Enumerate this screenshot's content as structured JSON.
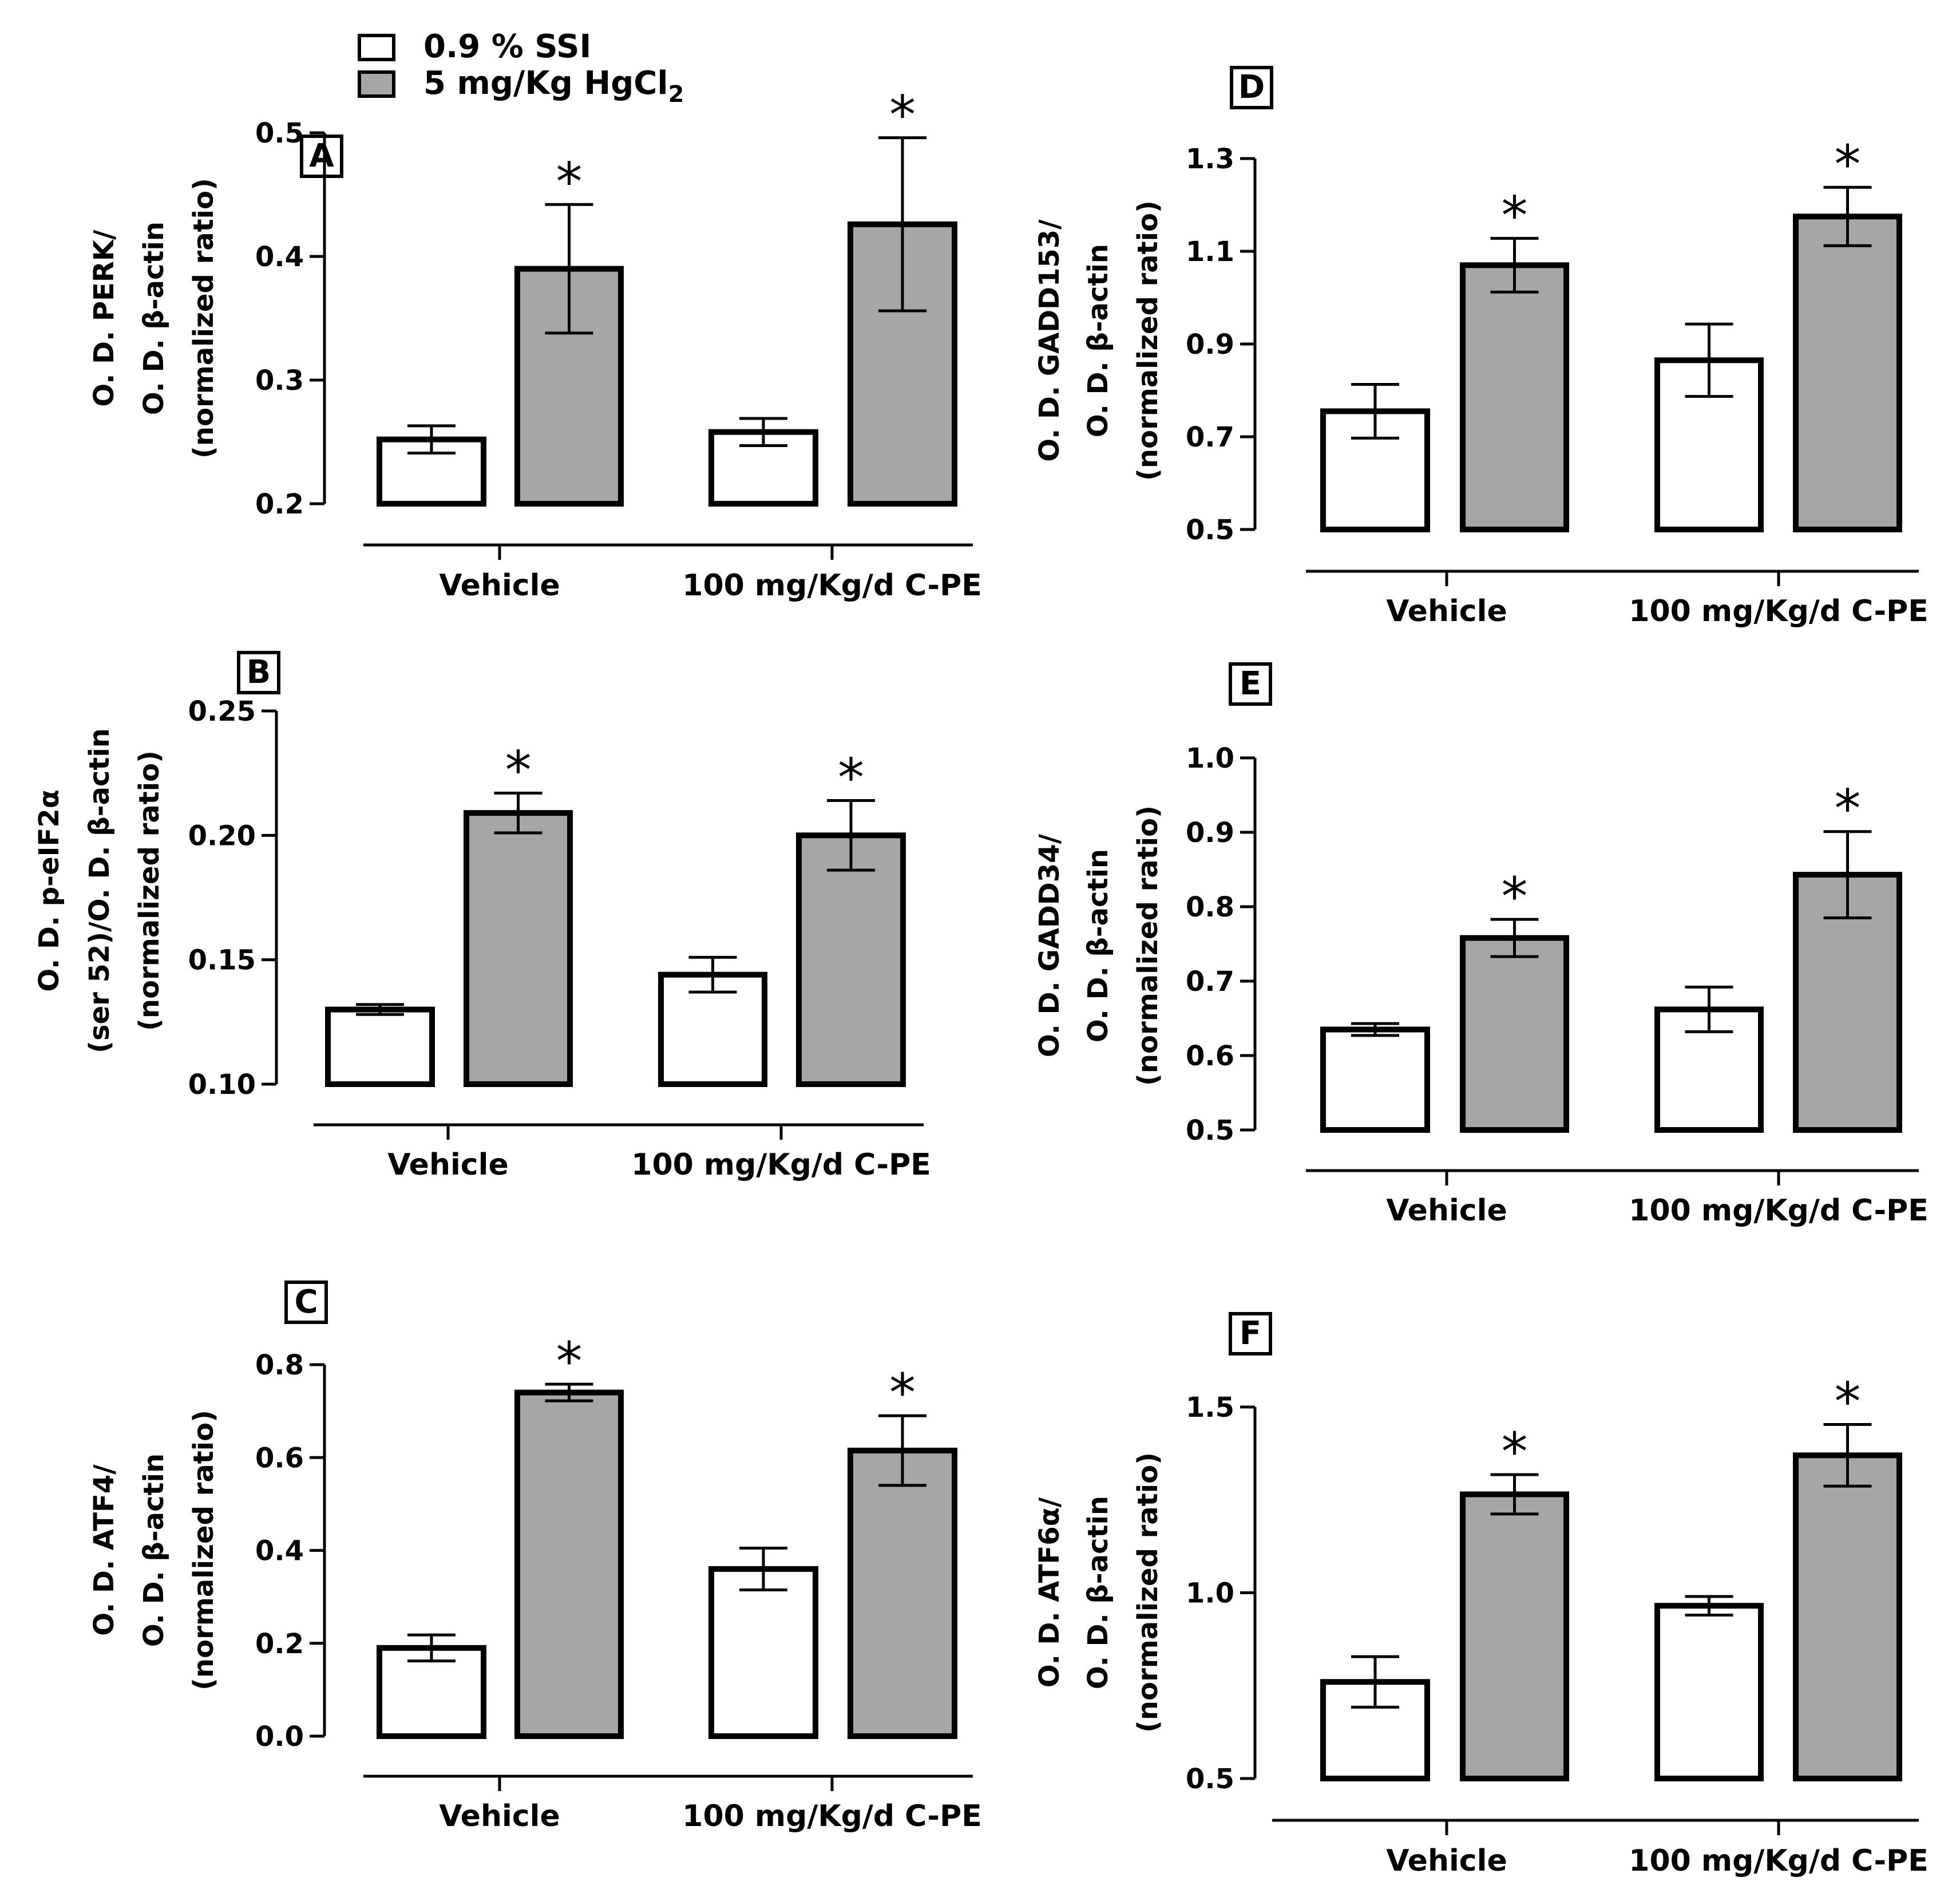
{
  "legend": {
    "items": [
      {
        "label": "0.9 % SSI",
        "color": "#ffffff"
      },
      {
        "label": "5 mg/Kg HgCl",
        "subscript": "2",
        "color": "#a6a6a6"
      }
    ]
  },
  "chart_data": [
    {
      "type": "bar",
      "panel": "A",
      "ylabel": [
        "O. D. PERK/",
        "O. D. β-actin",
        "(normalized ratio)"
      ],
      "categories": [
        "Vehicle",
        "100 mg/Kg/d C-PE"
      ],
      "ylim": [
        0.2,
        0.5
      ],
      "yticks": [
        0.2,
        0.3,
        0.4,
        0.5
      ],
      "tick_labels": [
        "0.2",
        "0.3",
        "0.4",
        "0.5"
      ],
      "series": [
        {
          "name": "0.9 % SSI",
          "values": [
            0.252,
            0.258
          ],
          "errors": [
            0.011,
            0.011
          ]
        },
        {
          "name": "5 mg/Kg HgCl2",
          "values": [
            0.39,
            0.426
          ],
          "errors": [
            0.052,
            0.07
          ]
        }
      ],
      "annotations": [
        {
          "series": 1,
          "category": 0,
          "text": "*"
        },
        {
          "series": 1,
          "category": 1,
          "text": "*"
        }
      ]
    },
    {
      "type": "bar",
      "panel": "B",
      "ylabel": [
        "O. D.  p-eIF2α",
        "(ser 52)/O. D. β-actin",
        "(normalized ratio)"
      ],
      "categories": [
        "Vehicle",
        "100 mg/Kg/d C-PE"
      ],
      "ylim": [
        0.1,
        0.25
      ],
      "yticks": [
        0.1,
        0.15,
        0.2,
        0.25
      ],
      "tick_labels": [
        "0.10",
        "0.15",
        "0.20",
        "0.25"
      ],
      "series": [
        {
          "name": "0.9 % SSI",
          "values": [
            0.13,
            0.144
          ],
          "errors": [
            0.002,
            0.007
          ]
        },
        {
          "name": "5 mg/Kg HgCl2",
          "values": [
            0.209,
            0.2
          ],
          "errors": [
            0.008,
            0.014
          ]
        }
      ],
      "annotations": [
        {
          "series": 1,
          "category": 0,
          "text": "*"
        },
        {
          "series": 1,
          "category": 1,
          "text": "*"
        }
      ]
    },
    {
      "type": "bar",
      "panel": "C",
      "ylabel": [
        "O. D. ATF4/",
        "O. D.  β-actin",
        "(normalized ratio)"
      ],
      "categories": [
        "Vehicle",
        "100 mg/Kg/d C-PE"
      ],
      "ylim": [
        0.0,
        0.8
      ],
      "yticks": [
        0.0,
        0.2,
        0.4,
        0.6,
        0.8
      ],
      "tick_labels": [
        "0.0",
        "0.2",
        "0.4",
        "0.6",
        "0.8"
      ],
      "series": [
        {
          "name": "0.9 % SSI",
          "values": [
            0.19,
            0.36
          ],
          "errors": [
            0.028,
            0.045
          ]
        },
        {
          "name": "5 mg/Kg HgCl2",
          "values": [
            0.74,
            0.615
          ],
          "errors": [
            0.018,
            0.075
          ]
        }
      ],
      "annotations": [
        {
          "series": 1,
          "category": 0,
          "text": "*"
        },
        {
          "series": 1,
          "category": 1,
          "text": "*"
        }
      ]
    },
    {
      "type": "bar",
      "panel": "D",
      "ylabel": [
        "O. D.  GADD153/",
        "O. D.  β-actin",
        "(normalized ratio)"
      ],
      "categories": [
        "Vehicle",
        "100 mg/Kg/d C-PE"
      ],
      "ylim": [
        0.5,
        1.3
      ],
      "yticks": [
        0.5,
        0.7,
        0.9,
        1.1,
        1.3
      ],
      "tick_labels": [
        "0.5",
        "0.7",
        "0.9",
        "1.1",
        "1.3"
      ],
      "series": [
        {
          "name": "0.9 % SSI",
          "values": [
            0.755,
            0.865
          ],
          "errors": [
            0.058,
            0.078
          ]
        },
        {
          "name": "5 mg/Kg HgCl2",
          "values": [
            1.07,
            1.175
          ],
          "errors": [
            0.058,
            0.063
          ]
        }
      ],
      "annotations": [
        {
          "series": 1,
          "category": 0,
          "text": "*"
        },
        {
          "series": 1,
          "category": 1,
          "text": "*"
        }
      ]
    },
    {
      "type": "bar",
      "panel": "E",
      "ylabel": [
        "O. D. GADD34/",
        "O. D.  β-actin",
        "(normalized ratio)"
      ],
      "categories": [
        "Vehicle",
        "100 mg/Kg/d C-PE"
      ],
      "ylim": [
        0.5,
        1.0
      ],
      "yticks": [
        0.5,
        0.6,
        0.7,
        0.8,
        0.9,
        1.0
      ],
      "tick_labels": [
        "0.5",
        "0.6",
        "0.7",
        "0.8",
        "0.9",
        "1.0"
      ],
      "series": [
        {
          "name": "0.9 % SSI",
          "values": [
            0.635,
            0.662
          ],
          "errors": [
            0.008,
            0.03
          ]
        },
        {
          "name": "5 mg/Kg HgCl2",
          "values": [
            0.758,
            0.843
          ],
          "errors": [
            0.025,
            0.058
          ]
        }
      ],
      "annotations": [
        {
          "series": 1,
          "category": 0,
          "text": "*"
        },
        {
          "series": 1,
          "category": 1,
          "text": "*"
        }
      ]
    },
    {
      "type": "bar",
      "panel": "F",
      "ylabel": [
        "O. D. ATF6α/",
        "O. D.  β-actin",
        "(normalized ratio)"
      ],
      "categories": [
        "Vehicle",
        "100 mg/Kg/d C-PE"
      ],
      "ylim": [
        0.5,
        1.5
      ],
      "yticks": [
        0.5,
        1.0,
        1.5
      ],
      "tick_labels": [
        "0.5",
        "1.0",
        "1.5"
      ],
      "series": [
        {
          "name": "0.9 % SSI",
          "values": [
            0.76,
            0.965
          ],
          "errors": [
            0.068,
            0.025
          ]
        },
        {
          "name": "5 mg/Kg HgCl2",
          "values": [
            1.265,
            1.37
          ],
          "errors": [
            0.053,
            0.083
          ]
        }
      ],
      "annotations": [
        {
          "series": 1,
          "category": 0,
          "text": "*"
        },
        {
          "series": 1,
          "category": 1,
          "text": "*"
        }
      ]
    }
  ]
}
